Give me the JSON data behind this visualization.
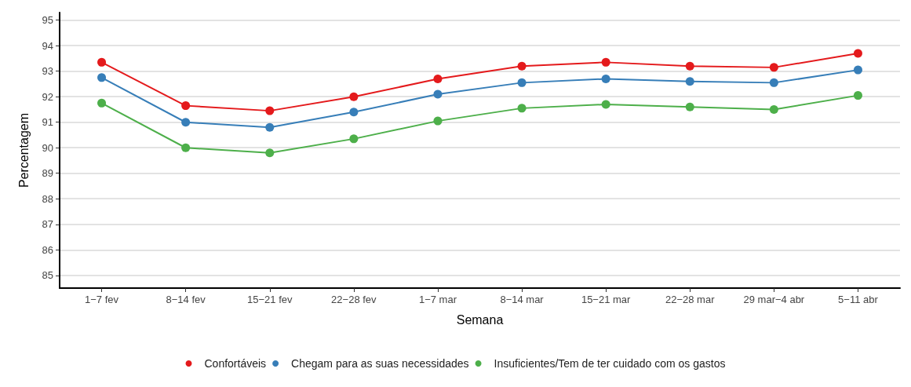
{
  "chart_data": {
    "type": "line",
    "xlabel": "Semana",
    "ylabel": "Percentagem",
    "categories": [
      "1−7 fev",
      "8−14 fev",
      "15−21 fev",
      "22−28 fev",
      "1−7 mar",
      "8−14 mar",
      "15−21 mar",
      "22−28 mar",
      "29 mar−4 abr",
      "5−11 abr"
    ],
    "series": [
      {
        "name": "Confortáveis",
        "color": "#e41a1c",
        "values": [
          93.35,
          91.65,
          91.45,
          92.0,
          92.7,
          93.2,
          93.35,
          93.2,
          93.15,
          93.7
        ]
      },
      {
        "name": "Chegam para as suas necessidades",
        "color": "#377eb8",
        "values": [
          92.75,
          91.0,
          90.8,
          91.4,
          92.1,
          92.55,
          92.7,
          92.6,
          92.55,
          93.05
        ]
      },
      {
        "name": "Insuficientes/Tem de ter cuidado com os gastos",
        "color": "#4daf4a",
        "values": [
          91.75,
          90.0,
          89.8,
          90.35,
          91.05,
          91.55,
          91.7,
          91.6,
          91.5,
          92.05
        ]
      }
    ],
    "ylim": [
      84.5,
      95.3
    ],
    "yticks": [
      85,
      86,
      87,
      88,
      89,
      90,
      91,
      92,
      93,
      94,
      95
    ],
    "grid": "y",
    "legend": "bottom",
    "marker": "circle",
    "line_style": "solid"
  }
}
